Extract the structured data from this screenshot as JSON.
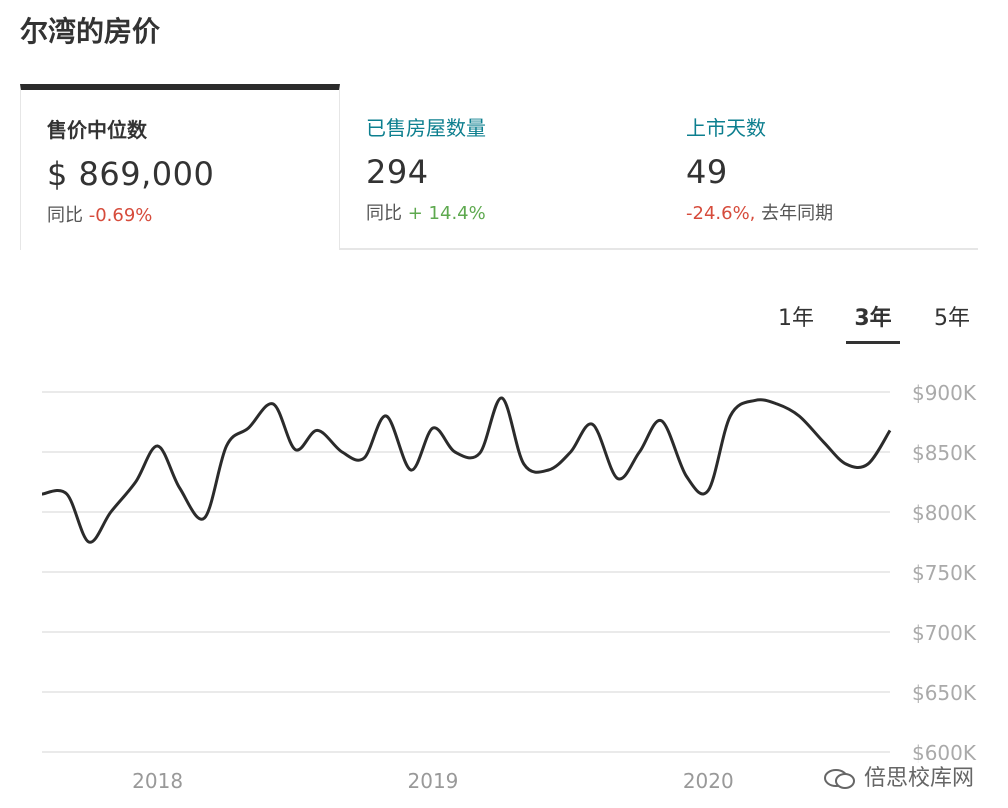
{
  "page_title": "尔湾的房价",
  "stats": [
    {
      "label": "售价中位数",
      "value": "$ 869,000",
      "sub_prefix": "同比",
      "change": "-0.69%",
      "sub_suffix": "",
      "change_color": "#d64b3b"
    },
    {
      "label": "已售房屋数量",
      "value": "294",
      "sub_prefix": "同比",
      "change": "+ 14.4%",
      "sub_suffix": "",
      "change_color": "#5ea94f"
    },
    {
      "label": "上市天数",
      "value": "49",
      "sub_prefix": "",
      "change": "-24.6%,",
      "sub_suffix": "去年同期",
      "change_color": "#d64b3b"
    }
  ],
  "range_tabs": [
    {
      "label": "1年",
      "active": false
    },
    {
      "label": "3年",
      "active": true
    },
    {
      "label": "5年",
      "active": false
    }
  ],
  "watermark": "倍思校库网",
  "chart_data": {
    "type": "line",
    "title": "",
    "xlabel": "",
    "ylabel": "",
    "ylim": [
      600000,
      900000
    ],
    "y_ticks": [
      900000,
      850000,
      800000,
      750000,
      700000,
      650000,
      600000
    ],
    "y_tick_labels": [
      "$900K",
      "$850K",
      "$800K",
      "$750K",
      "$700K",
      "$650K",
      "$600K"
    ],
    "x_tick_labels": [
      {
        "label": "2018",
        "x": 2018.0
      },
      {
        "label": "2019",
        "x": 2019.0
      },
      {
        "label": "2020",
        "x": 2020.0
      }
    ],
    "xlim": [
      2017.58,
      2020.66
    ],
    "grid": true,
    "line_color": "#2b2b2b",
    "series": [
      {
        "x": [
          2017.58,
          2017.67,
          2017.75,
          2017.83,
          2017.92,
          2018.0,
          2018.08,
          2018.17,
          2018.25,
          2018.33,
          2018.42,
          2018.5,
          2018.58,
          2018.67,
          2018.75,
          2018.83,
          2018.92,
          2019.0,
          2019.08,
          2019.17,
          2019.25,
          2019.33,
          2019.42,
          2019.5,
          2019.58,
          2019.67,
          2019.75,
          2019.83,
          2019.92,
          2020.0,
          2020.08,
          2020.17,
          2020.25,
          2020.33,
          2020.42,
          2020.5,
          2020.58,
          2020.66
        ],
        "values": [
          815000,
          815000,
          775000,
          800000,
          825000,
          855000,
          820000,
          795000,
          855000,
          870000,
          890000,
          852000,
          868000,
          850000,
          845000,
          880000,
          835000,
          870000,
          850000,
          849000,
          895000,
          840000,
          835000,
          850000,
          873000,
          828000,
          850000,
          876000,
          830000,
          818000,
          880000,
          893000,
          890000,
          880000,
          858000,
          840000,
          840000,
          868000
        ]
      }
    ]
  }
}
